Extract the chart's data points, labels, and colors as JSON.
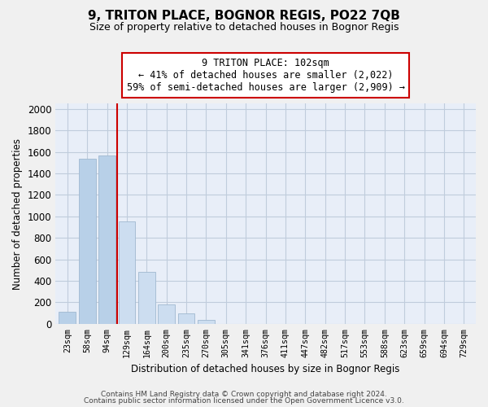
{
  "title": "9, TRITON PLACE, BOGNOR REGIS, PO22 7QB",
  "subtitle": "Size of property relative to detached houses in Bognor Regis",
  "xlabel": "Distribution of detached houses by size in Bognor Regis",
  "ylabel": "Number of detached properties",
  "bar_labels": [
    "23sqm",
    "58sqm",
    "94sqm",
    "129sqm",
    "164sqm",
    "200sqm",
    "235sqm",
    "270sqm",
    "305sqm",
    "341sqm",
    "376sqm",
    "411sqm",
    "447sqm",
    "482sqm",
    "517sqm",
    "553sqm",
    "588sqm",
    "623sqm",
    "659sqm",
    "694sqm",
    "729sqm"
  ],
  "bar_values": [
    110,
    1540,
    1570,
    950,
    480,
    180,
    100,
    35,
    0,
    0,
    0,
    0,
    0,
    0,
    0,
    0,
    0,
    0,
    0,
    0,
    0
  ],
  "bar_color_left": "#b8d0e8",
  "bar_color_right": "#ccddf0",
  "bar_edge_color": "#a0b8d0",
  "vline_x": 2.5,
  "vline_color": "#cc0000",
  "annotation_line1": "9 TRITON PLACE: 102sqm",
  "annotation_line2": "← 41% of detached houses are smaller (2,022)",
  "annotation_line3": "59% of semi-detached houses are larger (2,909) →",
  "ylim": [
    0,
    2050
  ],
  "yticks": [
    0,
    200,
    400,
    600,
    800,
    1000,
    1200,
    1400,
    1600,
    1800,
    2000
  ],
  "footer1": "Contains HM Land Registry data © Crown copyright and database right 2024.",
  "footer2": "Contains public sector information licensed under the Open Government Licence v3.0.",
  "bg_color": "#f0f0f0",
  "plot_bg_color": "#e8eef8",
  "grid_color": "#c0ccdc"
}
